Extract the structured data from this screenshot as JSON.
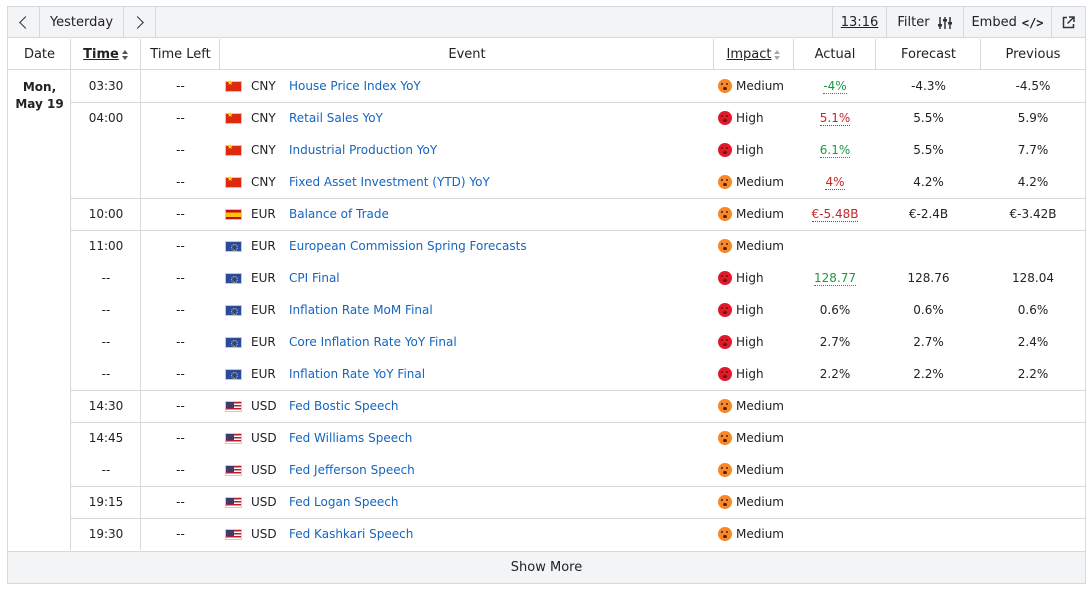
{
  "toolbar": {
    "day_label": "Yesterday",
    "time": "13:16",
    "filter_label": "Filter",
    "embed_label": "Embed",
    "embed_code": "</>"
  },
  "columns": {
    "date": "Date",
    "time": "Time",
    "time_left": "Time Left",
    "event": "Event",
    "impact": "Impact",
    "actual": "Actual",
    "forecast": "Forecast",
    "previous": "Previous"
  },
  "date_cell": {
    "line1": "Mon,",
    "line2": "May 19"
  },
  "rows": [
    {
      "time": "03:30",
      "time_left": "--",
      "flag": "cn",
      "currency": "CNY",
      "event": "House Price Index YoY",
      "impact": "Medium",
      "actual": "-4%",
      "actual_color": "green",
      "forecast": "-4.3%",
      "previous": "-4.5%"
    },
    {
      "time": "04:00",
      "time_left": "--",
      "flag": "cn",
      "currency": "CNY",
      "event": "Retail Sales YoY",
      "impact": "High",
      "actual": "5.1%",
      "actual_color": "red",
      "forecast": "5.5%",
      "previous": "5.9%"
    },
    {
      "time": "",
      "time_left": "--",
      "flag": "cn",
      "currency": "CNY",
      "event": "Industrial Production YoY",
      "impact": "High",
      "actual": "6.1%",
      "actual_color": "green",
      "forecast": "5.5%",
      "previous": "7.7%"
    },
    {
      "time": "",
      "time_left": "--",
      "flag": "cn",
      "currency": "CNY",
      "event": "Fixed Asset Investment (YTD) YoY",
      "impact": "Medium",
      "actual": "4%",
      "actual_color": "red",
      "forecast": "4.2%",
      "previous": "4.2%"
    },
    {
      "time": "10:00",
      "time_left": "--",
      "flag": "es",
      "currency": "EUR",
      "event": "Balance of Trade",
      "impact": "Medium",
      "actual": "€-5.48B",
      "actual_color": "red",
      "forecast": "€-2.4B",
      "previous": "€-3.42B"
    },
    {
      "time": "11:00",
      "time_left": "--",
      "flag": "eu",
      "currency": "EUR",
      "event": "European Commission Spring Forecasts",
      "impact": "Medium",
      "actual": "",
      "actual_color": "",
      "forecast": "",
      "previous": ""
    },
    {
      "time": "--",
      "time_left": "--",
      "flag": "eu",
      "currency": "EUR",
      "event": "CPI Final",
      "impact": "High",
      "actual": "128.77",
      "actual_color": "green",
      "forecast": "128.76",
      "previous": "128.04"
    },
    {
      "time": "--",
      "time_left": "--",
      "flag": "eu",
      "currency": "EUR",
      "event": "Inflation Rate MoM Final",
      "impact": "High",
      "actual": "0.6%",
      "actual_color": "",
      "forecast": "0.6%",
      "previous": "0.6%"
    },
    {
      "time": "--",
      "time_left": "--",
      "flag": "eu",
      "currency": "EUR",
      "event": "Core Inflation Rate YoY Final",
      "impact": "High",
      "actual": "2.7%",
      "actual_color": "",
      "forecast": "2.7%",
      "previous": "2.4%"
    },
    {
      "time": "--",
      "time_left": "--",
      "flag": "eu",
      "currency": "EUR",
      "event": "Inflation Rate YoY Final",
      "impact": "High",
      "actual": "2.2%",
      "actual_color": "",
      "forecast": "2.2%",
      "previous": "2.2%"
    },
    {
      "time": "14:30",
      "time_left": "--",
      "flag": "us",
      "currency": "USD",
      "event": "Fed Bostic Speech",
      "impact": "Medium",
      "actual": "",
      "actual_color": "",
      "forecast": "",
      "previous": ""
    },
    {
      "time": "14:45",
      "time_left": "--",
      "flag": "us",
      "currency": "USD",
      "event": "Fed Williams Speech",
      "impact": "Medium",
      "actual": "",
      "actual_color": "",
      "forecast": "",
      "previous": ""
    },
    {
      "time": "--",
      "time_left": "--",
      "flag": "us",
      "currency": "USD",
      "event": "Fed Jefferson Speech",
      "impact": "Medium",
      "actual": "",
      "actual_color": "",
      "forecast": "",
      "previous": ""
    },
    {
      "time": "19:15",
      "time_left": "--",
      "flag": "us",
      "currency": "USD",
      "event": "Fed Logan Speech",
      "impact": "Medium",
      "actual": "",
      "actual_color": "",
      "forecast": "",
      "previous": ""
    },
    {
      "time": "19:30",
      "time_left": "--",
      "flag": "us",
      "currency": "USD",
      "event": "Fed Kashkari Speech",
      "impact": "Medium",
      "actual": "",
      "actual_color": "",
      "forecast": "",
      "previous": ""
    }
  ],
  "group_starts": [
    1,
    4,
    5,
    10,
    11,
    13,
    14
  ],
  "show_more_label": "Show More"
}
